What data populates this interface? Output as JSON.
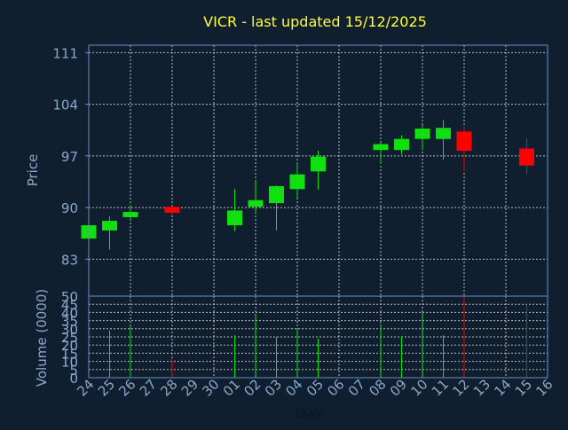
{
  "chart_data": {
    "type": "candlestick",
    "title": "VICR - last updated 15/12/2025",
    "xlabel": "Day",
    "price_panel": {
      "ylabel": "Price",
      "ylim": [
        78,
        112
      ],
      "yticks": [
        83,
        90,
        97,
        104,
        111
      ]
    },
    "volume_panel": {
      "ylabel": "Volume (0000)",
      "ylim": [
        0,
        50
      ],
      "yticks": [
        0,
        5,
        10,
        15,
        20,
        25,
        30,
        35,
        40,
        45,
        50
      ]
    },
    "x_tick_labels": [
      "24",
      "25",
      "26",
      "27",
      "28",
      "29",
      "30",
      "01",
      "02",
      "03",
      "04",
      "05",
      "06",
      "07",
      "08",
      "09",
      "10",
      "11",
      "12",
      "13",
      "14",
      "15",
      "16"
    ],
    "grid": true,
    "colors": {
      "background": "#0f1f30",
      "up": "#10e010",
      "down": "#ff0000",
      "title": "#ffff33",
      "axis_text": "#8aa8c8",
      "frame": "#6a8fbf"
    },
    "candles": [
      {
        "day": "24",
        "open": 85.8,
        "high": 87.8,
        "low": 85.8,
        "close": 87.6,
        "volume": 0
      },
      {
        "day": "25",
        "open": 86.9,
        "high": 88.8,
        "low": 84.3,
        "close": 88.2,
        "volume": 29
      },
      {
        "day": "26",
        "open": 88.7,
        "high": 90.4,
        "low": 88.4,
        "close": 89.4,
        "volume": 32
      },
      {
        "day": "28",
        "open": 90.1,
        "high": 90.2,
        "low": 89.0,
        "close": 89.3,
        "volume": 12
      },
      {
        "day": "01",
        "open": 87.6,
        "high": 92.5,
        "low": 86.8,
        "close": 89.6,
        "volume": 26
      },
      {
        "day": "02",
        "open": 90.1,
        "high": 93.7,
        "low": 89.3,
        "close": 91.0,
        "volume": 38
      },
      {
        "day": "03",
        "open": 90.6,
        "high": 93.0,
        "low": 86.9,
        "close": 92.9,
        "volume": 25
      },
      {
        "day": "04",
        "open": 92.5,
        "high": 96.1,
        "low": 91.3,
        "close": 94.5,
        "volume": 30
      },
      {
        "day": "05",
        "open": 94.9,
        "high": 97.7,
        "low": 92.4,
        "close": 96.9,
        "volume": 24
      },
      {
        "day": "08",
        "open": 97.8,
        "high": 98.8,
        "low": 95.9,
        "close": 98.6,
        "volume": 33
      },
      {
        "day": "09",
        "open": 97.8,
        "high": 99.8,
        "low": 97.2,
        "close": 99.3,
        "volume": 25
      },
      {
        "day": "10",
        "open": 99.3,
        "high": 101.2,
        "low": 97.9,
        "close": 100.7,
        "volume": 40
      },
      {
        "day": "11",
        "open": 99.3,
        "high": 101.9,
        "low": 96.5,
        "close": 100.8,
        "volume": 26
      },
      {
        "day": "12",
        "open": 100.3,
        "high": 101.0,
        "low": 94.9,
        "close": 97.7,
        "volume": 50
      },
      {
        "day": "15",
        "open": 98.0,
        "high": 99.4,
        "low": 94.5,
        "close": 95.7,
        "volume": 45
      }
    ]
  }
}
